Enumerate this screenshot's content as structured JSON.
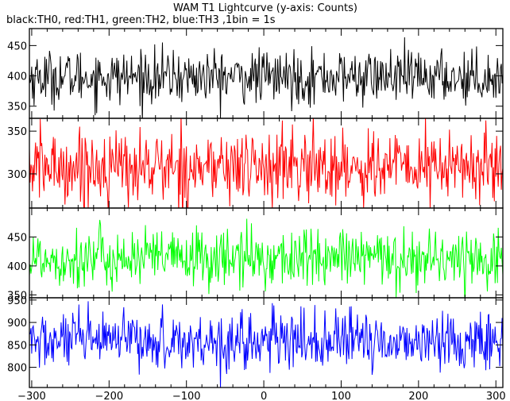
{
  "title": "WAM T1 Lightcurve (y-axis: Counts)",
  "subtitle": "black:TH0, red:TH1, green:TH2, blue:TH3 ,1bin = 1s",
  "chart_data": {
    "type": "line",
    "title": "WAM T1 Lightcurve (y-axis: Counts)",
    "subtitle": "black:TH0, red:TH1, green:TH2, blue:TH3 ,1bin = 1s",
    "xlabel": "",
    "ylabel": "",
    "x_range": [
      -303,
      309
    ],
    "x_ticks": [
      -300,
      -200,
      -100,
      0,
      100,
      200,
      300
    ],
    "x_tick_labels": [
      "−300",
      "−200",
      "−100",
      "0",
      "100",
      "200",
      "300"
    ],
    "bin_seconds": 1,
    "grid": false,
    "panels": [
      {
        "name": "TH0",
        "color": "#000000",
        "mean": 398,
        "sd": 22,
        "ylim": [
          330,
          478
        ],
        "y_ticks": [
          350,
          400,
          450
        ]
      },
      {
        "name": "TH1",
        "color": "#ff0000",
        "mean": 308,
        "sd": 22,
        "ylim": [
          260,
          365
        ],
        "y_ticks": [
          300,
          350
        ]
      },
      {
        "name": "TH2",
        "color": "#00ff00",
        "mean": 413,
        "sd": 26,
        "ylim": [
          345,
          500
        ],
        "y_ticks": [
          350,
          400,
          450
        ]
      },
      {
        "name": "TH3",
        "color": "#0000ff",
        "mean": 858,
        "sd": 32,
        "ylim": [
          755,
          955
        ],
        "y_ticks": [
          800,
          850,
          900,
          950
        ]
      }
    ]
  }
}
